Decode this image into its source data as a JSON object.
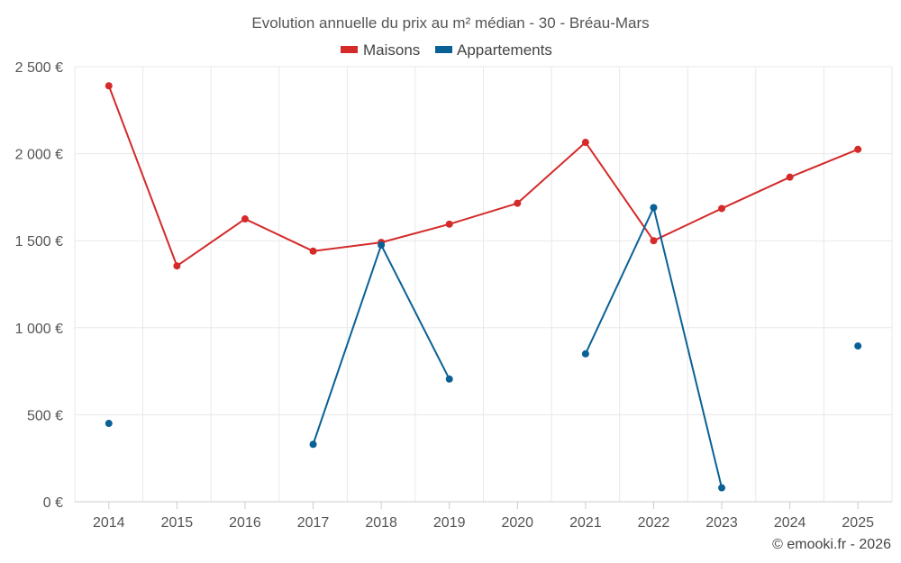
{
  "chart_data": {
    "type": "line",
    "title": "Evolution annuelle du prix au m² médian - 30 - Bréau-Mars",
    "categories": [
      "2014",
      "2015",
      "2016",
      "2017",
      "2018",
      "2019",
      "2020",
      "2021",
      "2022",
      "2023",
      "2024",
      "2025"
    ],
    "ylim": [
      0,
      2500
    ],
    "yticks": [
      0,
      500,
      1000,
      1500,
      2000,
      2500
    ],
    "ytick_labels": [
      "0 €",
      "500 €",
      "1 000 €",
      "1 500 €",
      "2 000 €",
      "2 500 €"
    ],
    "series": [
      {
        "name": "Maisons",
        "color": "#d42a2a",
        "values": [
          2390,
          1355,
          1625,
          1440,
          1490,
          1595,
          1715,
          2065,
          1500,
          1685,
          1865,
          2025
        ]
      },
      {
        "name": "Appartements",
        "color": "#0a6196",
        "values": [
          450,
          null,
          null,
          330,
          1475,
          705,
          null,
          850,
          1690,
          80,
          null,
          895
        ]
      }
    ],
    "legend_position": "top-center",
    "grid": true
  },
  "credit": "© emooki.fr - 2026"
}
